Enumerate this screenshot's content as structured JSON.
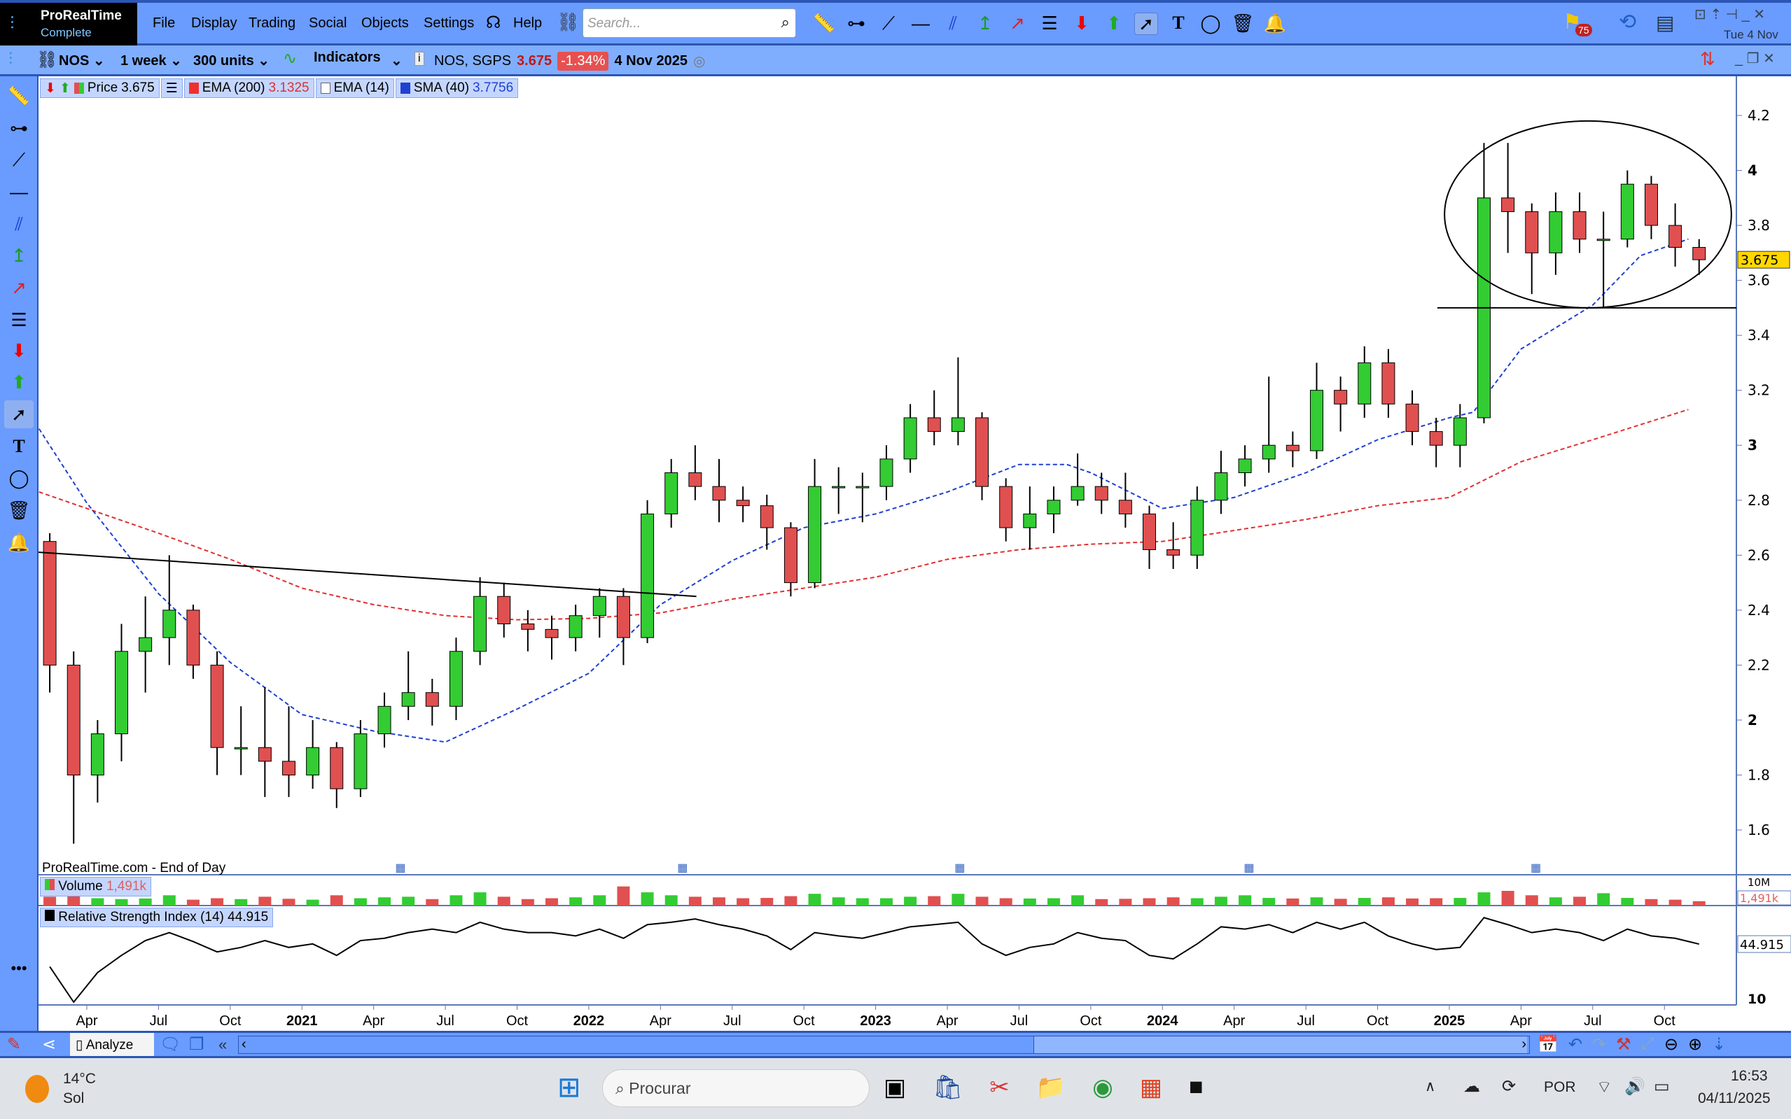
{
  "app": {
    "name": "ProRealTime",
    "edition": "Complete",
    "date_short": "Tue 4 Nov",
    "notifications": "75"
  },
  "menu": [
    "File",
    "Display",
    "Trading",
    "Social",
    "Objects",
    "Settings",
    "Help"
  ],
  "search": {
    "placeholder": "Search..."
  },
  "toolbar2": {
    "symbol": "NOS",
    "timeframe": "1 week",
    "units": "300 units",
    "indicators": "Indicators",
    "instrument": "NOS, SGPS",
    "price": "3.675",
    "change": "-1.34%",
    "date": "4 Nov 2025"
  },
  "legend": {
    "price_label": "Price",
    "price_value": "3.675",
    "ema200_label": "EMA (200)",
    "ema200_value": "3.1325",
    "ema14_label": "EMA (14)",
    "sma40_label": "SMA (40)",
    "sma40_value": "3.7756"
  },
  "source": "ProRealTime.com - End of Day",
  "volume": {
    "label": "Volume",
    "value": "1,491k",
    "axis_top": "10M"
  },
  "rsi": {
    "label": "Relative Strength Index (14)",
    "value": "44.915",
    "axis_bottom": "10"
  },
  "bottom": {
    "analyze": "Analyze"
  },
  "taskbar": {
    "temp": "14°C",
    "weather": "Sol",
    "search": "Procurar",
    "lang": "POR",
    "time": "16:53",
    "date": "04/11/2025"
  },
  "colors": {
    "up": "#33cc33",
    "down": "#e05050",
    "ema200": "#e03030",
    "sma40": "#2040d0",
    "accent": "#6a9bff",
    "price_tag": "#ffd700"
  },
  "chart_data": {
    "type": "candlestick",
    "interval_drawn": "monthly aggregate of weekly candles",
    "start": "2020-02",
    "price_axis": {
      "ticks": [
        1.6,
        1.8,
        2,
        2.2,
        2.4,
        2.6,
        2.8,
        3,
        3.2,
        3.4,
        3.6,
        3.8,
        4,
        4.2
      ],
      "range": [
        1.5,
        4.3
      ],
      "last": 3.675
    },
    "time_ticks": [
      [
        "Apr",
        3
      ],
      [
        "Jul",
        6
      ],
      [
        "Oct",
        9
      ],
      [
        "2021",
        12
      ],
      [
        "Apr",
        15
      ],
      [
        "Jul",
        18
      ],
      [
        "Oct",
        21
      ],
      [
        "2022",
        24
      ],
      [
        "Apr",
        27
      ],
      [
        "Jul",
        30
      ],
      [
        "Oct",
        33
      ],
      [
        "2023",
        36
      ],
      [
        "Apr",
        39
      ],
      [
        "Jul",
        42
      ],
      [
        "Oct",
        45
      ],
      [
        "2024",
        48
      ],
      [
        "Apr",
        51
      ],
      [
        "Jul",
        54
      ],
      [
        "Oct",
        57
      ],
      [
        "2025",
        60
      ],
      [
        "Apr",
        63
      ],
      [
        "Jul",
        66
      ],
      [
        "Oct",
        69
      ]
    ],
    "ohlc": [
      [
        2.65,
        2.68,
        2.1,
        2.2
      ],
      [
        2.2,
        2.25,
        1.55,
        1.8
      ],
      [
        1.8,
        2.0,
        1.7,
        1.95
      ],
      [
        1.95,
        2.35,
        1.85,
        2.25
      ],
      [
        2.25,
        2.45,
        2.1,
        2.3
      ],
      [
        2.3,
        2.6,
        2.2,
        2.4
      ],
      [
        2.4,
        2.42,
        2.15,
        2.2
      ],
      [
        2.2,
        2.25,
        1.8,
        1.9
      ],
      [
        1.9,
        2.05,
        1.8,
        1.9
      ],
      [
        1.9,
        2.12,
        1.72,
        1.85
      ],
      [
        1.85,
        2.05,
        1.72,
        1.8
      ],
      [
        1.8,
        2.0,
        1.75,
        1.9
      ],
      [
        1.9,
        1.92,
        1.68,
        1.75
      ],
      [
        1.75,
        2.0,
        1.72,
        1.95
      ],
      [
        1.95,
        2.1,
        1.9,
        2.05
      ],
      [
        2.05,
        2.25,
        2.0,
        2.1
      ],
      [
        2.1,
        2.15,
        1.98,
        2.05
      ],
      [
        2.05,
        2.3,
        2.0,
        2.25
      ],
      [
        2.25,
        2.52,
        2.2,
        2.45
      ],
      [
        2.45,
        2.5,
        2.3,
        2.35
      ],
      [
        2.35,
        2.4,
        2.25,
        2.33
      ],
      [
        2.33,
        2.38,
        2.22,
        2.3
      ],
      [
        2.3,
        2.42,
        2.25,
        2.38
      ],
      [
        2.38,
        2.48,
        2.3,
        2.45
      ],
      [
        2.45,
        2.48,
        2.2,
        2.3
      ],
      [
        2.3,
        2.8,
        2.28,
        2.75
      ],
      [
        2.75,
        2.95,
        2.7,
        2.9
      ],
      [
        2.9,
        3.0,
        2.8,
        2.85
      ],
      [
        2.85,
        2.95,
        2.72,
        2.8
      ],
      [
        2.8,
        2.85,
        2.72,
        2.78
      ],
      [
        2.78,
        2.82,
        2.62,
        2.7
      ],
      [
        2.7,
        2.72,
        2.45,
        2.5
      ],
      [
        2.5,
        2.95,
        2.48,
        2.85
      ],
      [
        2.85,
        2.92,
        2.75,
        2.85
      ],
      [
        2.85,
        2.9,
        2.72,
        2.85
      ],
      [
        2.85,
        3.0,
        2.8,
        2.95
      ],
      [
        2.95,
        3.15,
        2.9,
        3.1
      ],
      [
        3.1,
        3.2,
        3.0,
        3.05
      ],
      [
        3.05,
        3.32,
        3.0,
        3.1
      ],
      [
        3.1,
        3.12,
        2.8,
        2.85
      ],
      [
        2.85,
        2.88,
        2.65,
        2.7
      ],
      [
        2.7,
        2.85,
        2.62,
        2.75
      ],
      [
        2.75,
        2.85,
        2.68,
        2.8
      ],
      [
        2.8,
        2.97,
        2.78,
        2.85
      ],
      [
        2.85,
        2.9,
        2.75,
        2.8
      ],
      [
        2.8,
        2.9,
        2.7,
        2.75
      ],
      [
        2.75,
        2.78,
        2.55,
        2.62
      ],
      [
        2.62,
        2.72,
        2.55,
        2.6
      ],
      [
        2.6,
        2.85,
        2.55,
        2.8
      ],
      [
        2.8,
        2.98,
        2.75,
        2.9
      ],
      [
        2.9,
        3.0,
        2.85,
        2.95
      ],
      [
        2.95,
        3.25,
        2.9,
        3.0
      ],
      [
        3.0,
        3.05,
        2.92,
        2.98
      ],
      [
        2.98,
        3.3,
        2.95,
        3.2
      ],
      [
        3.2,
        3.25,
        3.05,
        3.15
      ],
      [
        3.15,
        3.36,
        3.1,
        3.3
      ],
      [
        3.3,
        3.35,
        3.1,
        3.15
      ],
      [
        3.15,
        3.2,
        3.0,
        3.05
      ],
      [
        3.05,
        3.1,
        2.92,
        3.0
      ],
      [
        3.0,
        3.15,
        2.92,
        3.1
      ],
      [
        3.1,
        4.1,
        3.08,
        3.9
      ],
      [
        3.9,
        4.1,
        3.7,
        3.85
      ],
      [
        3.85,
        3.88,
        3.55,
        3.7
      ],
      [
        3.7,
        3.92,
        3.62,
        3.85
      ],
      [
        3.85,
        3.92,
        3.7,
        3.75
      ],
      [
        3.75,
        3.85,
        3.5,
        3.75
      ],
      [
        3.75,
        4.0,
        3.72,
        3.95
      ],
      [
        3.95,
        3.98,
        3.75,
        3.8
      ],
      [
        3.8,
        3.88,
        3.65,
        3.72
      ],
      [
        3.72,
        3.75,
        3.62,
        3.675
      ]
    ],
    "ema200": [
      [
        1,
        2.83
      ],
      [
        6,
        2.68
      ],
      [
        9,
        2.585
      ],
      [
        12,
        2.48
      ],
      [
        15,
        2.42
      ],
      [
        18,
        2.38
      ],
      [
        21,
        2.365
      ],
      [
        24,
        2.37
      ],
      [
        27,
        2.39
      ],
      [
        30,
        2.44
      ],
      [
        33,
        2.48
      ],
      [
        36,
        2.52
      ],
      [
        39,
        2.585
      ],
      [
        42,
        2.62
      ],
      [
        45,
        2.64
      ],
      [
        48,
        2.65
      ],
      [
        51,
        2.69
      ],
      [
        54,
        2.73
      ],
      [
        57,
        2.78
      ],
      [
        60,
        2.81
      ],
      [
        63,
        2.94
      ],
      [
        66,
        3.02
      ],
      [
        70,
        3.13
      ]
    ],
    "sma40": [
      [
        1,
        3.06
      ],
      [
        3,
        2.79
      ],
      [
        6,
        2.46
      ],
      [
        9,
        2.21
      ],
      [
        12,
        2.02
      ],
      [
        15,
        1.96
      ],
      [
        18,
        1.92
      ],
      [
        21,
        2.04
      ],
      [
        24,
        2.17
      ],
      [
        27,
        2.42
      ],
      [
        30,
        2.58
      ],
      [
        33,
        2.7
      ],
      [
        36,
        2.75
      ],
      [
        39,
        2.83
      ],
      [
        42,
        2.93
      ],
      [
        44,
        2.93
      ],
      [
        45,
        2.9
      ],
      [
        48,
        2.77
      ],
      [
        51,
        2.81
      ],
      [
        54,
        2.9
      ],
      [
        57,
        3.02
      ],
      [
        60,
        3.1
      ],
      [
        61,
        3.12
      ],
      [
        63,
        3.35
      ],
      [
        66,
        3.51
      ],
      [
        68,
        3.69
      ],
      [
        70,
        3.75
      ]
    ],
    "trendline": [
      [
        1,
        2.62
      ],
      [
        28.5,
        2.45
      ]
    ],
    "support_line": {
      "price": 3.5,
      "from": 59.5
    },
    "ellipse": {
      "center": [
        65.8,
        3.84
      ],
      "radius_months": 6,
      "radius_price": 0.34
    },
    "volume_k": [
      3000,
      4500,
      2500,
      2200,
      2400,
      3500,
      2000,
      2500,
      2200,
      3000,
      2300,
      2000,
      3500,
      2500,
      2800,
      3000,
      2200,
      3500,
      4500,
      3000,
      2200,
      2500,
      2800,
      3500,
      6500,
      4500,
      3500,
      3000,
      2800,
      2500,
      2600,
      3200,
      4000,
      2800,
      2500,
      2500,
      3000,
      3200,
      4000,
      3000,
      2500,
      2400,
      2500,
      3500,
      2200,
      2300,
      2500,
      2800,
      2500,
      3000,
      3500,
      2600,
      2400,
      2800,
      2300,
      2600,
      2800,
      2400,
      2500,
      2600,
      4500,
      5000,
      3500,
      2800,
      3000,
      4200,
      2600,
      2200,
      2000,
      1491
    ],
    "volume_max_k": 10000,
    "rsi": [
      31.3,
      10,
      27.8,
      38.1,
      47,
      51.8,
      46.4,
      40.2,
      42.9,
      47,
      42.9,
      45,
      38.1,
      47,
      48.4,
      51.8,
      53.9,
      51.8,
      58,
      53.9,
      51.8,
      51.8,
      49.8,
      53.9,
      48.4,
      56.6,
      58,
      60,
      56.6,
      53.9,
      49.8,
      41.6,
      51.8,
      49.8,
      48.4,
      51.8,
      55.3,
      56.6,
      58,
      45,
      38.1,
      42.9,
      45,
      51.8,
      48.4,
      47,
      38.1,
      36,
      45,
      55.3,
      53.9,
      56.6,
      51.8,
      58,
      53.9,
      58,
      49.8,
      45,
      41.6,
      42.9,
      60.8,
      56.6,
      51.8,
      53.9,
      51.8,
      47,
      53.9,
      49.8,
      48.4,
      44.9
    ],
    "rsi_range": [
      10,
      66
    ]
  }
}
